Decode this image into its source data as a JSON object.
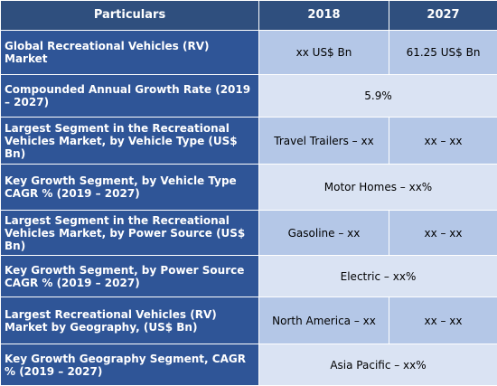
{
  "header": {
    "col1": "Particulars",
    "col2": "2018",
    "col3": "2027"
  },
  "rows": [
    {
      "label": "Global Recreational Vehicles (RV) Market",
      "v2018": "xx US$ Bn",
      "v2027": "61.25 US$ Bn"
    },
    {
      "label": "Compounded Annual Growth Rate (2019 – 2027)",
      "merged": "5.9%"
    },
    {
      "label": "Largest Segment in the Recreational Vehicles Market, by Vehicle Type (US$ Bn)",
      "v2018": "Travel Trailers – xx",
      "v2027": "xx – xx"
    },
    {
      "label": "Key Growth Segment, by Vehicle Type CAGR % (2019 – 2027)",
      "merged": "Motor Homes – xx%"
    },
    {
      "label": "Largest Segment in the Recreational Vehicles Market, by Power Source (US$ Bn)",
      "v2018": "Gasoline – xx",
      "v2027": "xx – xx"
    },
    {
      "label": "Key Growth Segment, by Power Source CAGR % (2019 – 2027)",
      "merged": "Electric – xx%"
    },
    {
      "label": "Largest Recreational Vehicles (RV) Market by Geography, (US$ Bn)",
      "v2018": "North America – xx",
      "v2027": "xx – xx"
    },
    {
      "label": "Key Growth Geography Segment, CAGR % (2019 – 2027)",
      "merged": "Asia Pacific – xx%"
    }
  ],
  "colors": {
    "header_bg": "#2f4f7e",
    "label_bg": "#2f5597",
    "value_bg_dark": "#b4c7e7",
    "value_bg_light": "#dae3f3"
  }
}
